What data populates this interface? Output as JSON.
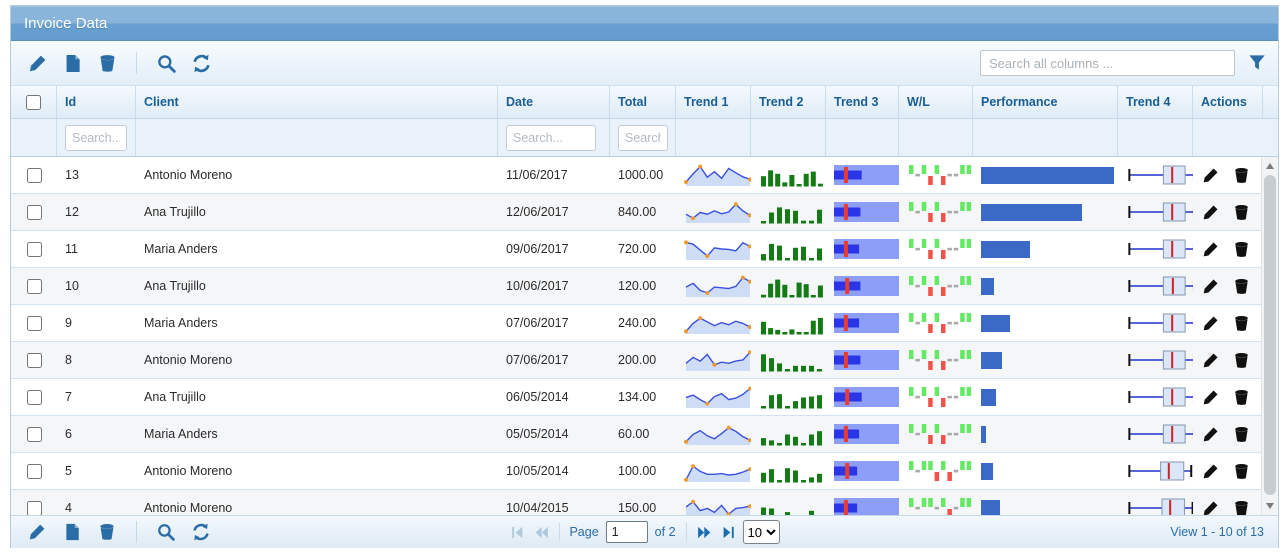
{
  "title_bar": {
    "title": "Invoice Data"
  },
  "toolbar": {
    "search_placeholder": "Search all columns ...",
    "buttons": [
      {
        "name": "edit-button",
        "icon": "pencil-icon"
      },
      {
        "name": "add-button",
        "icon": "file-icon"
      },
      {
        "name": "delete-button",
        "icon": "trash-icon"
      },
      {
        "name": "toolbar-separator"
      },
      {
        "name": "find-button",
        "icon": "search-icon"
      },
      {
        "name": "refresh-button",
        "icon": "refresh-icon"
      }
    ],
    "filter_icon": "funnel-icon"
  },
  "table": {
    "columns": [
      {
        "key": "sel",
        "label": ""
      },
      {
        "key": "id",
        "label": "Id",
        "sortable": true,
        "sort_state": "desc",
        "search_placeholder": "Search..."
      },
      {
        "key": "client",
        "label": "Client"
      },
      {
        "key": "date",
        "label": "Date",
        "search_placeholder": "Search..."
      },
      {
        "key": "total",
        "label": "Total",
        "search_placeholder": "Search..."
      },
      {
        "key": "trend1",
        "label": "Trend 1"
      },
      {
        "key": "trend2",
        "label": "Trend 2"
      },
      {
        "key": "trend3",
        "label": "Trend 3"
      },
      {
        "key": "wl",
        "label": "W/L"
      },
      {
        "key": "performance",
        "label": "Performance"
      },
      {
        "key": "trend4",
        "label": "Trend 4"
      },
      {
        "key": "actions",
        "label": "Actions"
      }
    ],
    "rows": [
      {
        "id": "13",
        "client": "Antonio Moreno",
        "date": "11/06/2017",
        "total": "1000.00",
        "trend1": [
          18,
          55,
          88,
          40,
          65,
          35,
          80,
          60,
          42,
          30
        ],
        "trend2": [
          45,
          70,
          55,
          18,
          50,
          10,
          55,
          65,
          12
        ],
        "trend3": {
          "value": 42,
          "target": 18
        },
        "wl": [
          1,
          0,
          1,
          -1,
          1,
          -1,
          0,
          0,
          1,
          1
        ],
        "performance": 100,
        "trend4": {
          "lo": 2,
          "q1": 52,
          "med": 65,
          "q3": 84,
          "hi": 97
        }
      },
      {
        "id": "12",
        "client": "Ana Trujillo",
        "date": "12/06/2017",
        "total": "840.00",
        "trend1": [
          40,
          22,
          48,
          40,
          55,
          42,
          50,
          85,
          55,
          35
        ],
        "trend2": [
          10,
          48,
          70,
          62,
          55,
          12,
          12,
          60
        ],
        "trend3": {
          "value": 40,
          "target": 18
        },
        "wl": [
          1,
          0,
          1,
          -1,
          1,
          -1,
          0,
          0,
          1,
          1
        ],
        "performance": 76,
        "trend4": {
          "lo": 2,
          "q1": 52,
          "med": 65,
          "q3": 84,
          "hi": 97
        }
      },
      {
        "id": "11",
        "client": "Maria Anders",
        "date": "09/06/2017",
        "total": "720.00",
        "trend1": [
          80,
          72,
          45,
          18,
          55,
          50,
          48,
          42,
          78,
          62
        ],
        "trend2": [
          28,
          72,
          65,
          10,
          55,
          60,
          10,
          52
        ],
        "trend3": {
          "value": 38,
          "target": 18
        },
        "wl": [
          1,
          0,
          1,
          -1,
          1,
          -1,
          0,
          0,
          1,
          1
        ],
        "performance": 37,
        "trend4": {
          "lo": 2,
          "q1": 52,
          "med": 65,
          "q3": 84,
          "hi": 97
        }
      },
      {
        "id": "10",
        "client": "Ana Trujillo",
        "date": "10/06/2017",
        "total": "120.00",
        "trend1": [
          45,
          62,
          30,
          18,
          45,
          42,
          38,
          48,
          88,
          70
        ],
        "trend2": [
          12,
          60,
          78,
          55,
          10,
          65,
          58,
          10,
          52
        ],
        "trend3": {
          "value": 40,
          "target": 20
        },
        "wl": [
          1,
          0,
          1,
          -1,
          1,
          -1,
          0,
          0,
          1,
          1
        ],
        "performance": 10,
        "trend4": {
          "lo": 2,
          "q1": 52,
          "med": 66,
          "q3": 84,
          "hi": 97
        }
      },
      {
        "id": "9",
        "client": "Maria Anders",
        "date": "07/06/2017",
        "total": "240.00",
        "trend1": [
          12,
          48,
          72,
          55,
          38,
          52,
          42,
          58,
          48,
          32
        ],
        "trend2": [
          55,
          28,
          20,
          10,
          22,
          10,
          10,
          60,
          72
        ],
        "trend3": {
          "value": 38,
          "target": 18
        },
        "wl": [
          1,
          0,
          1,
          -1,
          1,
          -1,
          0,
          0,
          1,
          1
        ],
        "performance": 22,
        "trend4": {
          "lo": 2,
          "q1": 52,
          "med": 65,
          "q3": 84,
          "hi": 97
        }
      },
      {
        "id": "8",
        "client": "Antonio Moreno",
        "date": "07/06/2017",
        "total": "200.00",
        "trend1": [
          35,
          62,
          45,
          75,
          28,
          40,
          35,
          45,
          50,
          85
        ],
        "trend2": [
          75,
          58,
          35,
          10,
          25,
          25,
          25,
          10
        ],
        "trend3": {
          "value": 40,
          "target": 18
        },
        "wl": [
          1,
          0,
          1,
          -1,
          1,
          -1,
          0,
          0,
          1,
          1
        ],
        "performance": 16,
        "trend4": {
          "lo": 2,
          "q1": 52,
          "med": 65,
          "q3": 84,
          "hi": 97
        }
      },
      {
        "id": "7",
        "client": "Ana Trujillo",
        "date": "06/05/2014",
        "total": "134.00",
        "trend1": [
          48,
          58,
          38,
          20,
          52,
          65,
          38,
          45,
          62,
          88
        ],
        "trend2": [
          10,
          58,
          62,
          10,
          32,
          48,
          52,
          58
        ],
        "trend3": {
          "value": 42,
          "target": 20
        },
        "wl": [
          1,
          0,
          1,
          -1,
          1,
          -1,
          0,
          0,
          1,
          1
        ],
        "performance": 11,
        "trend4": {
          "lo": 2,
          "q1": 52,
          "med": 65,
          "q3": 84,
          "hi": 97
        }
      },
      {
        "id": "6",
        "client": "Maria Anders",
        "date": "05/05/2014",
        "total": "60.00",
        "trend1": [
          15,
          48,
          65,
          42,
          28,
          52,
          78,
          62,
          38,
          22
        ],
        "trend2": [
          32,
          22,
          10,
          48,
          38,
          10,
          48,
          62
        ],
        "trend3": {
          "value": 38,
          "target": 18
        },
        "wl": [
          1,
          0,
          1,
          -1,
          1,
          -1,
          0,
          0,
          1,
          1
        ],
        "performance": 4,
        "trend4": {
          "lo": 2,
          "q1": 52,
          "med": 65,
          "q3": 84,
          "hi": 97
        }
      },
      {
        "id": "5",
        "client": "Antonio Moreno",
        "date": "10/05/2014",
        "total": "100.00",
        "trend1": [
          10,
          72,
          48,
          35,
          35,
          38,
          32,
          35,
          45,
          58
        ],
        "trend2": [
          42,
          58,
          10,
          62,
          52,
          10,
          22,
          38
        ],
        "trend3": {
          "value": 35,
          "target": 20
        },
        "wl": [
          1,
          0,
          1,
          1,
          -1,
          1,
          -1,
          0,
          1,
          1
        ],
        "performance": 9,
        "trend4": {
          "lo": 2,
          "q1": 48,
          "med": 60,
          "q3": 82,
          "hi": 93
        }
      },
      {
        "id": "4",
        "client": "Antonio Moreno",
        "date": "10/04/2015",
        "total": "150.00",
        "trend1": [
          55,
          78,
          38,
          48,
          30,
          62,
          22,
          48,
          52,
          58
        ],
        "trend2": [
          52,
          48,
          10,
          32,
          10,
          10,
          38,
          10
        ],
        "trend3": {
          "value": 35,
          "target": 18
        },
        "wl": [
          1,
          0,
          1,
          1,
          0,
          1,
          -1,
          0,
          1,
          1
        ],
        "performance": 14,
        "trend4": {
          "lo": 2,
          "q1": 50,
          "med": 62,
          "q3": 83,
          "hi": 95
        }
      }
    ],
    "row_actions": [
      {
        "name": "row-edit-button",
        "icon": "pencil-icon"
      },
      {
        "name": "row-delete-button",
        "icon": "trash-icon"
      }
    ]
  },
  "pager": {
    "page_label": "Page",
    "page_value": "1",
    "of_label": "of 2",
    "page_size": "10",
    "view_text": "View 1 - 10 of 13",
    "nav": [
      {
        "name": "first-page-button",
        "icon": "first-page-icon",
        "disabled": true
      },
      {
        "name": "prev-page-button",
        "icon": "prev-page-icon",
        "disabled": true
      },
      {
        "name": "next-page-button",
        "icon": "next-page-icon",
        "disabled": false
      },
      {
        "name": "last-page-button",
        "icon": "last-page-icon",
        "disabled": false
      }
    ]
  },
  "colors": {
    "accent_blue": "#2a6ca5",
    "header_text": "#1b5e94",
    "nav_enabled": "#1b6eae",
    "nav_disabled": "#aec8dc",
    "sort_up": "#8fb4d4",
    "sort_down": "#2a6496",
    "line_color": "#3a51dd",
    "line_fill": "#cfdcf6",
    "spot_color": "#ee9a2e",
    "bar_color": "#147a14",
    "bullet_bg": "#8d9ef8",
    "bullet_bar": "#2a35e8",
    "bullet_target": "#ea3b30",
    "win_color": "#63e963",
    "loss_color": "#f25248",
    "draw_color": "#a9a9a9",
    "perf_color": "#3a6ac6",
    "box_line": "#2231cc",
    "box_fill": "#dbe7f9",
    "box_border": "#8496ad",
    "median_color": "#cc2222",
    "cap_color": "#111111",
    "action_icon": "#111111"
  }
}
